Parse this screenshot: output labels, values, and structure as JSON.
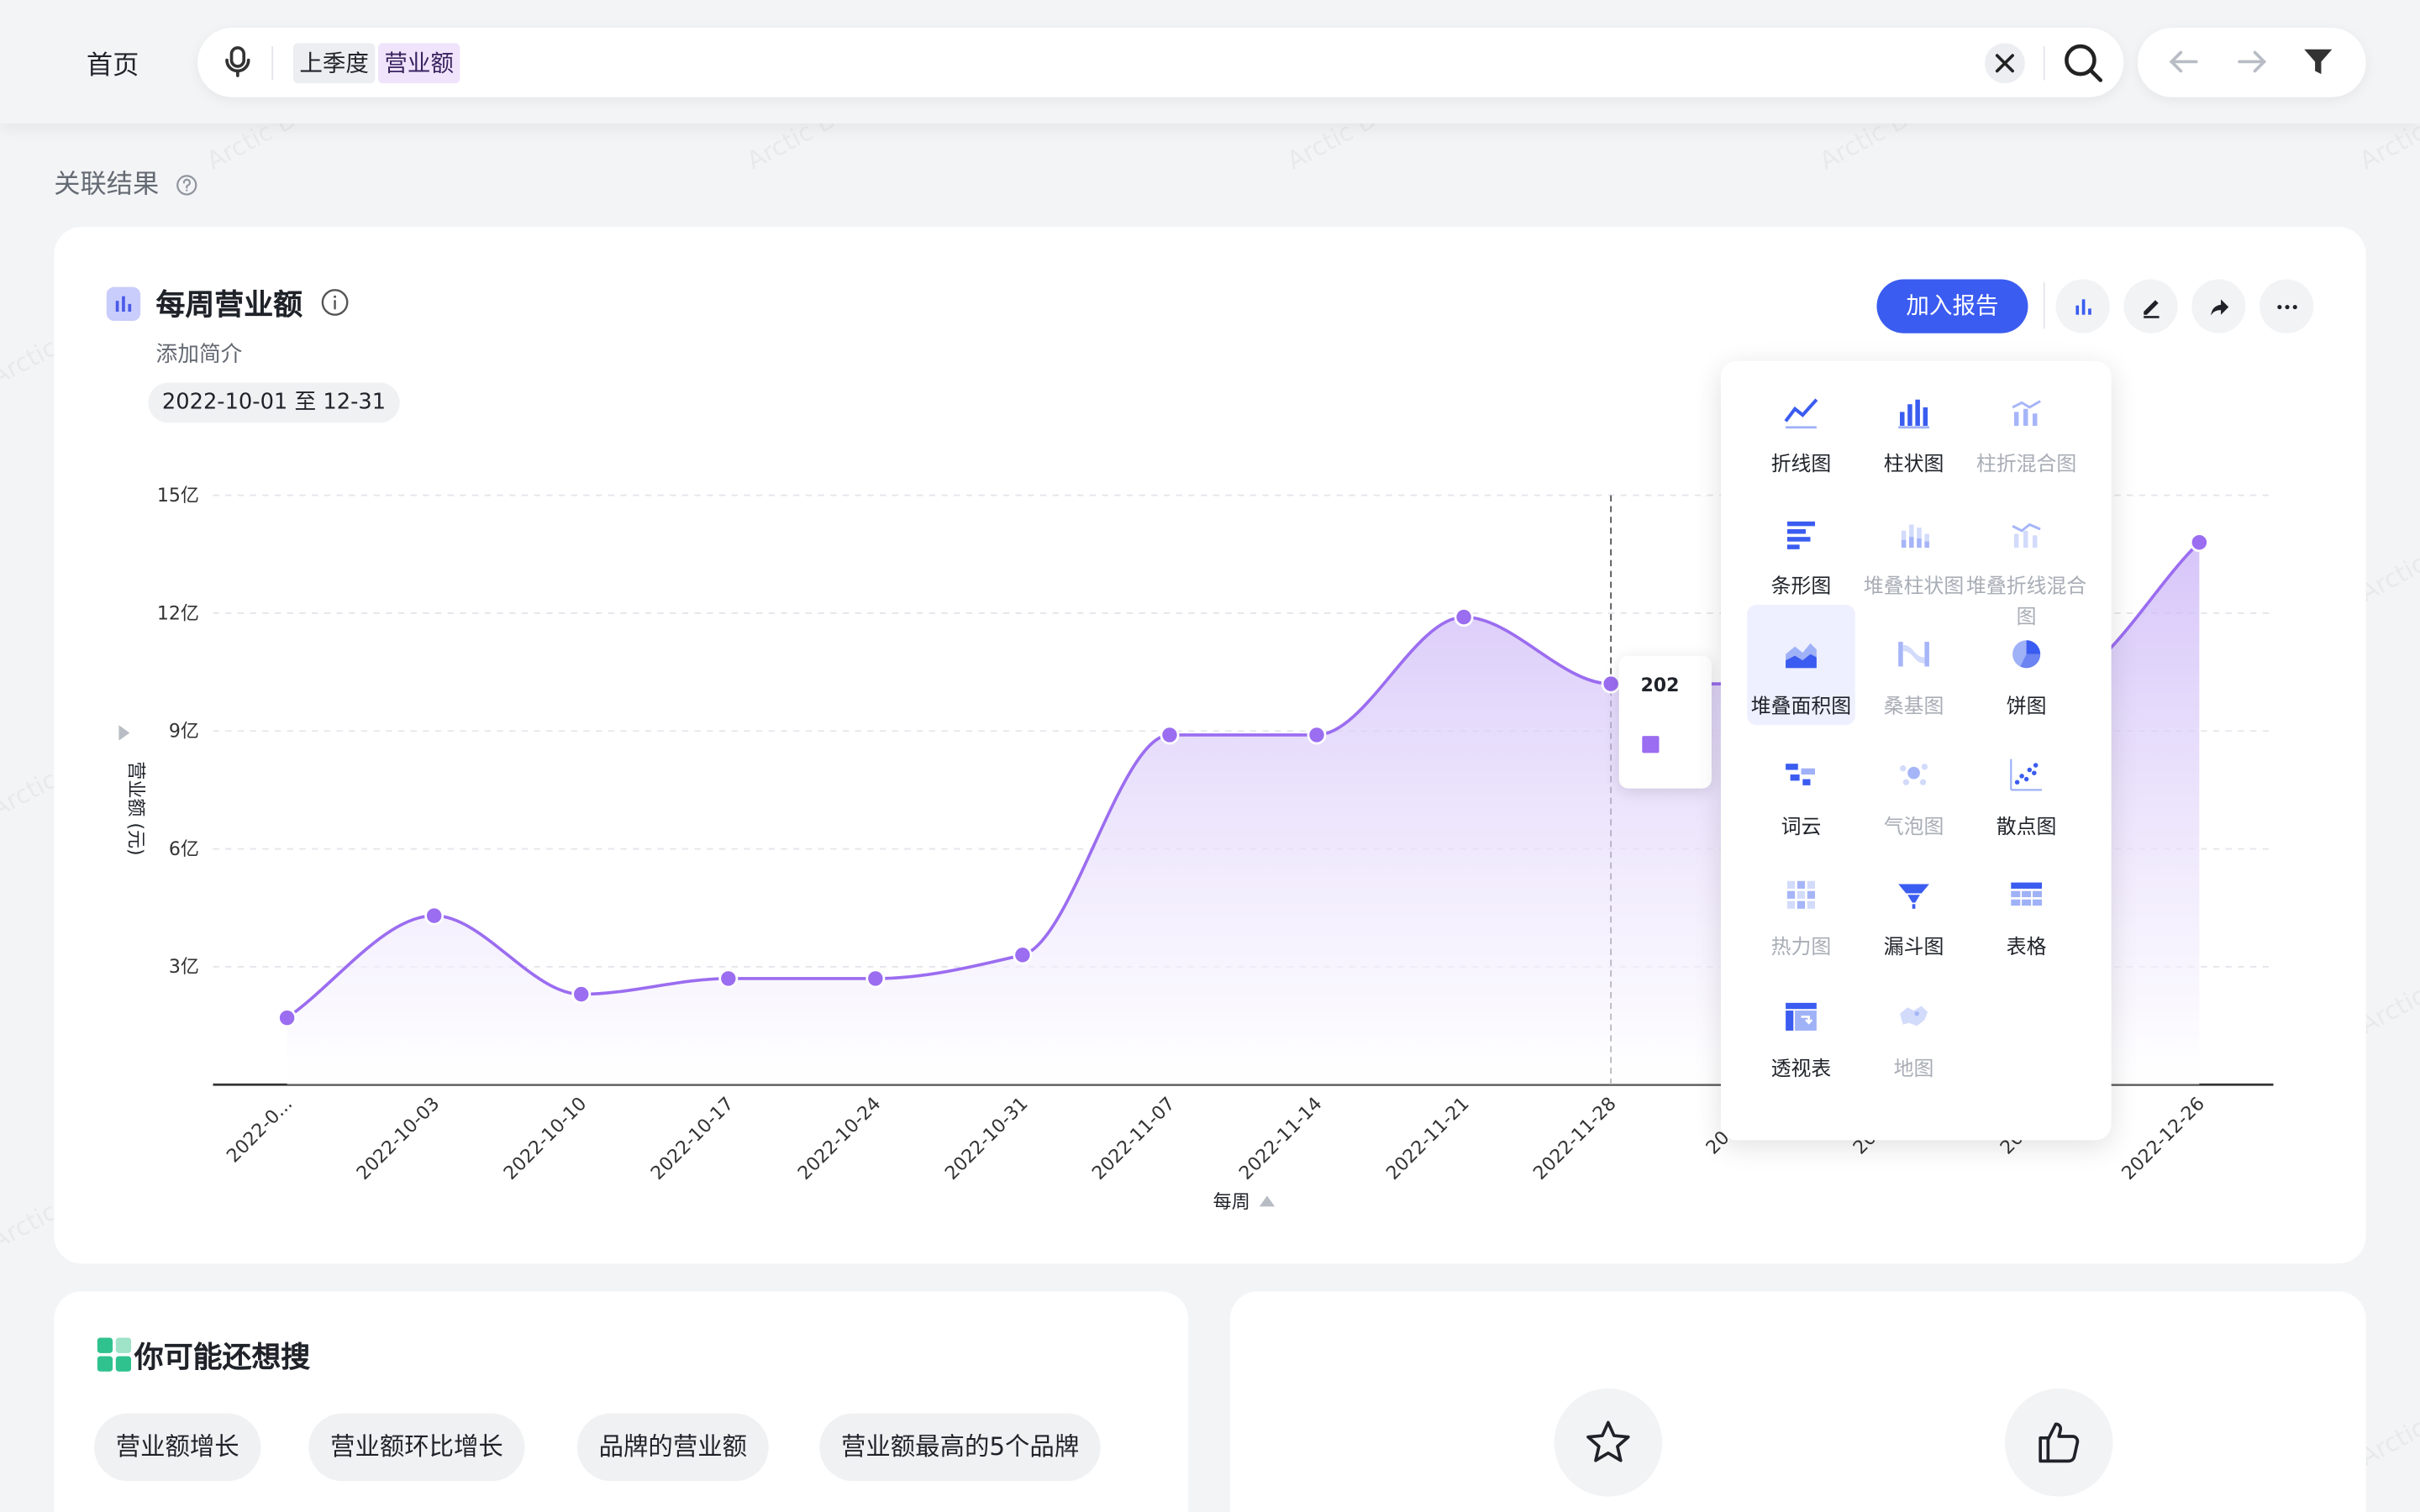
{
  "header": {
    "home_label": "首页",
    "search_tokens": [
      "上季度",
      "营业额"
    ]
  },
  "section": {
    "label": "关联结果"
  },
  "card": {
    "title": "每周营业额",
    "description": "添加简介",
    "date_range": "2022-10-01 至 12-31",
    "add_report_label": "加入报告"
  },
  "chart_data": {
    "type": "area",
    "ylabel": "营业额 (元)",
    "xlabel": "每周",
    "ytick_labels": [
      "15亿",
      "12亿",
      "9亿",
      "6亿",
      "3亿"
    ],
    "yticks": [
      15,
      12,
      9,
      6,
      3
    ],
    "ylim": [
      0,
      15
    ],
    "x": [
      "2022-0...",
      "2022-10-03",
      "2022-10-10",
      "2022-10-17",
      "2022-10-24",
      "2022-10-31",
      "2022-11-07",
      "2022-11-14",
      "2022-11-21",
      "2022-11-28",
      "2022-...",
      "2022-...",
      "2022-...",
      "2022-12-26"
    ],
    "values": [
      1.7,
      4.3,
      2.3,
      2.7,
      2.7,
      3.3,
      8.9,
      8.9,
      11.9,
      10.2,
      10.2,
      10.2,
      10.2,
      13.8
    ],
    "color": "#9b6df0",
    "grid": true,
    "hover_index": 9
  },
  "tooltip": {
    "date_partial": "202"
  },
  "chart_types": [
    {
      "label": "折线图",
      "icon": "line-chart-icon",
      "enabled": true
    },
    {
      "label": "柱状图",
      "icon": "bar-chart-icon",
      "enabled": true
    },
    {
      "label": "柱折混合图",
      "icon": "combo-chart-icon",
      "enabled": false
    },
    {
      "label": "条形图",
      "icon": "horizontal-bar-icon",
      "enabled": true
    },
    {
      "label": "堆叠柱状图",
      "icon": "stacked-bar-icon",
      "enabled": false
    },
    {
      "label": "堆叠折线混合图",
      "icon": "stacked-combo-icon",
      "enabled": false
    },
    {
      "label": "堆叠面积图",
      "icon": "stacked-area-icon",
      "enabled": true,
      "active": true
    },
    {
      "label": "桑基图",
      "icon": "sankey-icon",
      "enabled": false
    },
    {
      "label": "饼图",
      "icon": "pie-chart-icon",
      "enabled": true
    },
    {
      "label": "词云",
      "icon": "word-cloud-icon",
      "enabled": true
    },
    {
      "label": "气泡图",
      "icon": "bubble-chart-icon",
      "enabled": false
    },
    {
      "label": "散点图",
      "icon": "scatter-chart-icon",
      "enabled": true
    },
    {
      "label": "热力图",
      "icon": "heatmap-icon",
      "enabled": false
    },
    {
      "label": "漏斗图",
      "icon": "funnel-icon",
      "enabled": true
    },
    {
      "label": "表格",
      "icon": "table-icon",
      "enabled": true
    },
    {
      "label": "透视表",
      "icon": "pivot-table-icon",
      "enabled": true
    },
    {
      "label": "地图",
      "icon": "map-icon",
      "enabled": false
    }
  ],
  "suggestions": {
    "title": "你可能还想搜",
    "chips": [
      "营业额增长",
      "营业额环比增长",
      "品牌的营业额",
      "营业额最高的5个品牌"
    ]
  },
  "watermark": "Arctic Data",
  "colors": {
    "accent": "#3b5cf0",
    "series": "#9b6df0"
  }
}
